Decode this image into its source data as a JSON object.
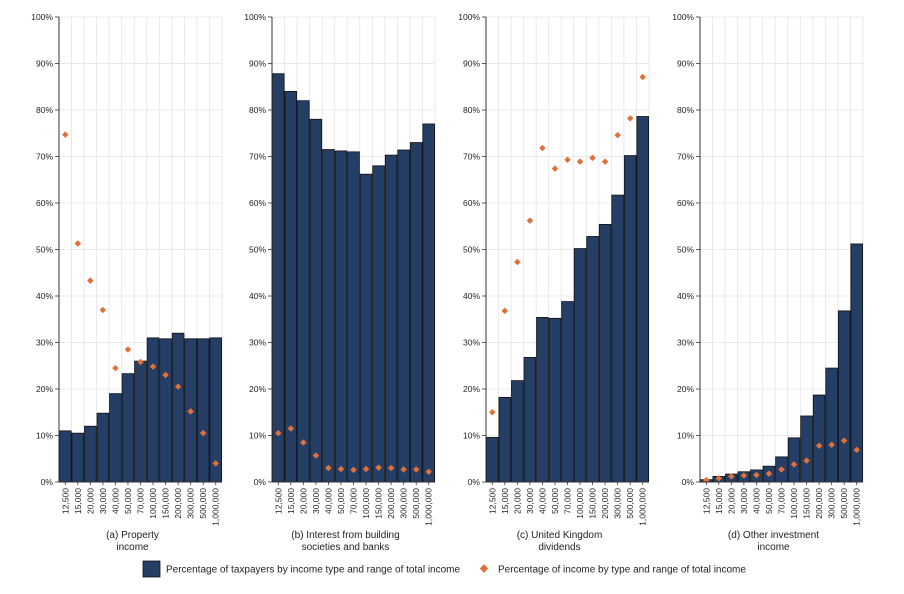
{
  "chart_data": {
    "type": "bar",
    "ylim": [
      0,
      100
    ],
    "y_ticks": [
      "0%",
      "10%",
      "20%",
      "30%",
      "40%",
      "50%",
      "60%",
      "70%",
      "80%",
      "90%",
      "100%"
    ],
    "grid": true,
    "categories": [
      "12,500",
      "15,000",
      "20,000",
      "30,000",
      "40,000",
      "50,000",
      "70,000",
      "100,000",
      "150,000",
      "200,000",
      "300,000",
      "500,000",
      "1,000,000"
    ],
    "bar_color": "#243e66",
    "point_color": "#e0703a",
    "legend": {
      "position": "bottom",
      "bar_label": "Percentage of taxpayers by income type and range of total income",
      "point_label": "Percentage of income by type and range of total income"
    },
    "panels": [
      {
        "caption_lines": [
          "(a) Property",
          "income"
        ],
        "bars": [
          11,
          10.5,
          12,
          14.8,
          19,
          23.3,
          26,
          31,
          30.8,
          32,
          30.8,
          30.8,
          31
        ],
        "points": [
          74.7,
          51.3,
          43.3,
          37,
          24.5,
          28.5,
          25.8,
          24.8,
          23,
          20.5,
          15.2,
          10.5,
          4
        ]
      },
      {
        "caption_lines": [
          "(b) Interest from building",
          "societies and banks"
        ],
        "bars": [
          87.8,
          84,
          82,
          78,
          71.5,
          71.2,
          71,
          66.2,
          68,
          70.3,
          71.4,
          73,
          77
        ],
        "points": [
          10.5,
          11.5,
          8.5,
          5.7,
          3,
          2.8,
          2.6,
          2.8,
          3.1,
          3,
          2.7,
          2.7,
          2.2
        ]
      },
      {
        "caption_lines": [
          "(c) United Kingdom",
          "dividends"
        ],
        "bars": [
          9.6,
          18.2,
          21.8,
          26.8,
          35.4,
          35.2,
          38.8,
          50.2,
          52.8,
          55.4,
          61.7,
          70.2,
          78.6
        ],
        "points": [
          15,
          36.8,
          47.3,
          56.2,
          71.8,
          67.4,
          69.3,
          68.9,
          69.7,
          68.9,
          74.6,
          78.2,
          87.1
        ]
      },
      {
        "caption_lines": [
          "(d) Other investment",
          "income"
        ],
        "bars": [
          0.5,
          1.2,
          1.7,
          2.2,
          2.6,
          3.4,
          5.4,
          9.5,
          14.2,
          18.7,
          24.5,
          36.8,
          51.2
        ],
        "points": [
          0.4,
          0.8,
          1.2,
          1.4,
          1.5,
          1.8,
          2.7,
          3.8,
          4.6,
          7.8,
          8,
          8.9,
          6.9
        ]
      }
    ]
  }
}
